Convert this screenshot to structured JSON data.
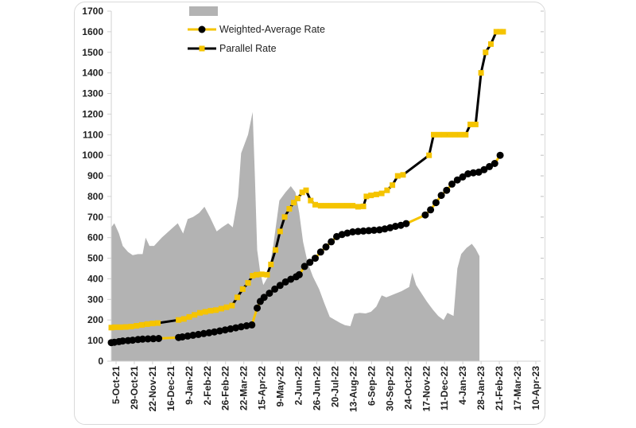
{
  "chart_data": {
    "type": "line",
    "ylim": [
      0,
      1700
    ],
    "y_ticks": [
      0,
      100,
      200,
      300,
      400,
      500,
      600,
      700,
      800,
      900,
      1000,
      1100,
      1200,
      1300,
      1400,
      1500,
      1600,
      1700
    ],
    "x_range": [
      "2021-10-05",
      "2023-04-20"
    ],
    "x_tick_labels": [
      "5-Oct-21",
      "29-Oct-21",
      "22-Nov-21",
      "16-Dec-21",
      "9-Jan-22",
      "2-Feb-22",
      "26-Feb-22",
      "22-Mar-22",
      "15-Apr-22",
      "9-May-22",
      "2-Jun-22",
      "26-Jun-22",
      "20-Jul-22",
      "13-Aug-22",
      "6-Sep-22",
      "30-Sep-22",
      "24-Oct-22",
      "17-Nov-22",
      "11-Dec-22",
      "4-Jan-23",
      "28-Jan-23",
      "21-Feb-23",
      "17-Mar-23",
      "10-Apr-23"
    ],
    "legend": {
      "placement": "top",
      "area_label": "",
      "line1_label": "Weighted-Average Rate",
      "line2_label": "Parallel Rate"
    },
    "grid": false,
    "colors": {
      "area": "#b3b3b3",
      "weighted": "#000000",
      "parallel": "#f5c400",
      "axis": "#d0d0d0"
    },
    "series": [
      {
        "name": "",
        "kind": "area",
        "points": [
          [
            "2021-10-05",
            650
          ],
          [
            "2021-10-09",
            670
          ],
          [
            "2021-10-15",
            620
          ],
          [
            "2021-10-20",
            560
          ],
          [
            "2021-10-27",
            530
          ],
          [
            "2021-11-02",
            515
          ],
          [
            "2021-11-09",
            520
          ],
          [
            "2021-11-15",
            520
          ],
          [
            "2021-11-19",
            600
          ],
          [
            "2021-11-24",
            560
          ],
          [
            "2021-11-30",
            560
          ],
          [
            "2021-12-10",
            600
          ],
          [
            "2021-12-22",
            640
          ],
          [
            "2021-12-31",
            670
          ],
          [
            "2022-01-07",
            620
          ],
          [
            "2022-01-13",
            690
          ],
          [
            "2022-01-20",
            700
          ],
          [
            "2022-01-28",
            720
          ],
          [
            "2022-02-04",
            750
          ],
          [
            "2022-02-11",
            700
          ],
          [
            "2022-02-20",
            630
          ],
          [
            "2022-02-27",
            650
          ],
          [
            "2022-03-07",
            670
          ],
          [
            "2022-03-13",
            650
          ],
          [
            "2022-03-20",
            800
          ],
          [
            "2022-03-24",
            1010
          ],
          [
            "2022-04-02",
            1100
          ],
          [
            "2022-04-08",
            1210
          ],
          [
            "2022-04-11",
            900
          ],
          [
            "2022-04-14",
            540
          ],
          [
            "2022-04-18",
            430
          ],
          [
            "2022-04-22",
            370
          ],
          [
            "2022-04-28",
            410
          ],
          [
            "2022-05-05",
            560
          ],
          [
            "2022-05-13",
            780
          ],
          [
            "2022-05-21",
            820
          ],
          [
            "2022-05-28",
            850
          ],
          [
            "2022-06-03",
            820
          ],
          [
            "2022-06-08",
            720
          ],
          [
            "2022-06-13",
            580
          ],
          [
            "2022-06-19",
            480
          ],
          [
            "2022-06-26",
            410
          ],
          [
            "2022-07-04",
            350
          ],
          [
            "2022-07-11",
            280
          ],
          [
            "2022-07-18",
            215
          ],
          [
            "2022-07-25",
            200
          ],
          [
            "2022-08-01",
            185
          ],
          [
            "2022-08-07",
            175
          ],
          [
            "2022-08-14",
            170
          ],
          [
            "2022-08-19",
            230
          ],
          [
            "2022-08-26",
            235
          ],
          [
            "2022-09-03",
            232
          ],
          [
            "2022-09-10",
            240
          ],
          [
            "2022-09-17",
            265
          ],
          [
            "2022-09-24",
            320
          ],
          [
            "2022-09-30",
            310
          ],
          [
            "2022-10-10",
            325
          ],
          [
            "2022-10-20",
            340
          ],
          [
            "2022-10-30",
            360
          ],
          [
            "2022-11-03",
            430
          ],
          [
            "2022-11-08",
            370
          ],
          [
            "2022-11-15",
            330
          ],
          [
            "2022-11-22",
            290
          ],
          [
            "2022-11-30",
            250
          ],
          [
            "2022-12-07",
            220
          ],
          [
            "2022-12-14",
            200
          ],
          [
            "2022-12-19",
            235
          ],
          [
            "2022-12-27",
            220
          ],
          [
            "2023-01-01",
            450
          ],
          [
            "2023-01-06",
            520
          ],
          [
            "2023-01-13",
            550
          ],
          [
            "2023-01-20",
            570
          ],
          [
            "2023-01-25",
            545
          ],
          [
            "2023-01-30",
            510
          ]
        ]
      },
      {
        "name": "Weighted-Average Rate",
        "kind": "line",
        "points": [
          [
            "2021-10-05",
            90
          ],
          [
            "2021-10-09",
            92
          ],
          [
            "2021-10-15",
            95
          ],
          [
            "2021-10-20",
            98
          ],
          [
            "2021-10-27",
            100
          ],
          [
            "2021-11-02",
            102
          ],
          [
            "2021-11-09",
            105
          ],
          [
            "2021-11-15",
            107
          ],
          [
            "2021-11-22",
            108
          ],
          [
            "2021-11-29",
            109
          ],
          [
            "2021-12-06",
            110
          ],
          [
            "2022-01-01",
            115
          ],
          [
            "2022-01-06",
            118
          ],
          [
            "2022-01-13",
            122
          ],
          [
            "2022-01-20",
            126
          ],
          [
            "2022-01-27",
            130
          ],
          [
            "2022-02-03",
            134
          ],
          [
            "2022-02-10",
            138
          ],
          [
            "2022-02-17",
            142
          ],
          [
            "2022-02-24",
            147
          ],
          [
            "2022-03-03",
            152
          ],
          [
            "2022-03-10",
            157
          ],
          [
            "2022-03-17",
            162
          ],
          [
            "2022-03-24",
            167
          ],
          [
            "2022-03-31",
            172
          ],
          [
            "2022-04-07",
            176
          ],
          [
            "2022-04-14",
            258
          ],
          [
            "2022-04-18",
            290
          ],
          [
            "2022-04-23",
            310
          ],
          [
            "2022-04-30",
            330
          ],
          [
            "2022-05-07",
            350
          ],
          [
            "2022-05-14",
            368
          ],
          [
            "2022-05-21",
            385
          ],
          [
            "2022-05-28",
            398
          ],
          [
            "2022-06-04",
            410
          ],
          [
            "2022-06-08",
            420
          ],
          [
            "2022-06-15",
            460
          ],
          [
            "2022-06-22",
            480
          ],
          [
            "2022-06-29",
            500
          ],
          [
            "2022-07-06",
            530
          ],
          [
            "2022-07-13",
            555
          ],
          [
            "2022-07-20",
            580
          ],
          [
            "2022-07-27",
            605
          ],
          [
            "2022-08-03",
            615
          ],
          [
            "2022-08-10",
            622
          ],
          [
            "2022-08-17",
            628
          ],
          [
            "2022-08-24",
            630
          ],
          [
            "2022-08-31",
            632
          ],
          [
            "2022-09-07",
            634
          ],
          [
            "2022-09-14",
            636
          ],
          [
            "2022-09-21",
            638
          ],
          [
            "2022-09-28",
            642
          ],
          [
            "2022-10-05",
            648
          ],
          [
            "2022-10-12",
            655
          ],
          [
            "2022-10-19",
            660
          ],
          [
            "2022-10-26",
            668
          ],
          [
            "2022-11-20",
            710
          ],
          [
            "2022-11-27",
            735
          ],
          [
            "2022-12-04",
            770
          ],
          [
            "2022-12-11",
            805
          ],
          [
            "2022-12-18",
            830
          ],
          [
            "2022-12-25",
            860
          ],
          [
            "2023-01-01",
            880
          ],
          [
            "2023-01-08",
            895
          ],
          [
            "2023-01-15",
            910
          ],
          [
            "2023-01-22",
            915
          ],
          [
            "2023-01-29",
            918
          ],
          [
            "2023-02-05",
            930
          ],
          [
            "2023-02-12",
            945
          ],
          [
            "2023-02-19",
            960
          ],
          [
            "2023-02-26",
            1000
          ]
        ]
      },
      {
        "name": "Parallel Rate",
        "kind": "line",
        "points": [
          [
            "2021-10-05",
            163
          ],
          [
            "2021-10-10",
            165
          ],
          [
            "2021-10-17",
            165
          ],
          [
            "2021-10-24",
            166
          ],
          [
            "2021-10-31",
            168
          ],
          [
            "2021-11-07",
            172
          ],
          [
            "2021-11-14",
            176
          ],
          [
            "2021-11-21",
            180
          ],
          [
            "2021-11-28",
            183
          ],
          [
            "2021-12-05",
            185
          ],
          [
            "2022-01-01",
            200
          ],
          [
            "2022-01-08",
            205
          ],
          [
            "2022-01-15",
            215
          ],
          [
            "2022-01-22",
            225
          ],
          [
            "2022-01-29",
            235
          ],
          [
            "2022-02-05",
            240
          ],
          [
            "2022-02-12",
            245
          ],
          [
            "2022-02-19",
            248
          ],
          [
            "2022-02-26",
            255
          ],
          [
            "2022-03-05",
            262
          ],
          [
            "2022-03-12",
            270
          ],
          [
            "2022-03-19",
            310
          ],
          [
            "2022-03-26",
            350
          ],
          [
            "2022-04-02",
            380
          ],
          [
            "2022-04-08",
            415
          ],
          [
            "2022-04-13",
            420
          ],
          [
            "2022-04-20",
            422
          ],
          [
            "2022-04-27",
            420
          ],
          [
            "2022-05-02",
            470
          ],
          [
            "2022-05-08",
            540
          ],
          [
            "2022-05-14",
            630
          ],
          [
            "2022-05-20",
            700
          ],
          [
            "2022-05-26",
            740
          ],
          [
            "2022-06-01",
            770
          ],
          [
            "2022-06-06",
            790
          ],
          [
            "2022-06-12",
            820
          ],
          [
            "2022-06-17",
            830
          ],
          [
            "2022-06-23",
            780
          ],
          [
            "2022-06-29",
            760
          ],
          [
            "2022-07-06",
            755
          ],
          [
            "2022-07-13",
            755
          ],
          [
            "2022-07-20",
            755
          ],
          [
            "2022-07-27",
            755
          ],
          [
            "2022-08-03",
            755
          ],
          [
            "2022-08-10",
            755
          ],
          [
            "2022-08-17",
            755
          ],
          [
            "2022-08-24",
            750
          ],
          [
            "2022-08-31",
            752
          ],
          [
            "2022-09-04",
            800
          ],
          [
            "2022-09-10",
            805
          ],
          [
            "2022-09-17",
            810
          ],
          [
            "2022-09-24",
            815
          ],
          [
            "2022-10-01",
            830
          ],
          [
            "2022-10-08",
            855
          ],
          [
            "2022-10-15",
            900
          ],
          [
            "2022-10-22",
            905
          ],
          [
            "2022-11-25",
            1000
          ],
          [
            "2022-12-01",
            1100
          ],
          [
            "2022-12-08",
            1100
          ],
          [
            "2022-12-15",
            1100
          ],
          [
            "2022-12-22",
            1100
          ],
          [
            "2022-12-29",
            1100
          ],
          [
            "2023-01-05",
            1100
          ],
          [
            "2023-01-12",
            1100
          ],
          [
            "2023-01-18",
            1150
          ],
          [
            "2023-01-25",
            1150
          ],
          [
            "2023-02-01",
            1400
          ],
          [
            "2023-02-07",
            1500
          ],
          [
            "2023-02-14",
            1540
          ],
          [
            "2023-02-21",
            1600
          ],
          [
            "2023-02-26",
            1600
          ],
          [
            "2023-03-02",
            1600
          ]
        ]
      }
    ]
  }
}
